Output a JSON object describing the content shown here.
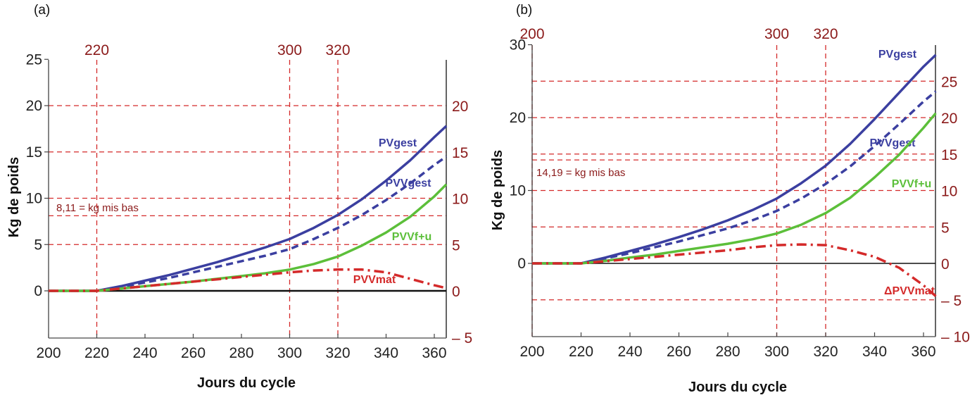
{
  "chart_data": [
    {
      "panel": "(a)",
      "type": "line",
      "xlabel": "Jours du cycle",
      "ylabel": "Kg de poids",
      "xlim": [
        200,
        365
      ],
      "ylim": [
        -5,
        25
      ],
      "x_ticks": [
        200,
        220,
        240,
        260,
        280,
        300,
        320,
        340,
        360
      ],
      "y_ticks_left": [
        0,
        5,
        10,
        15,
        20,
        25
      ],
      "y_ticks_right": [
        -5,
        0,
        5,
        10,
        15,
        20
      ],
      "top_markers": [
        220,
        300,
        320
      ],
      "h_reference_lines": [
        5,
        8.11,
        10,
        15,
        20
      ],
      "annotation": "8,11 = kg mis bas",
      "series": [
        {
          "name": "PVgest",
          "color": "#3b3fa0",
          "style": "solid",
          "x": [
            200,
            220,
            230,
            240,
            250,
            260,
            270,
            280,
            290,
            300,
            310,
            320,
            330,
            340,
            350,
            360,
            365
          ],
          "y": [
            0,
            0,
            0.5,
            1.1,
            1.7,
            2.4,
            3.1,
            3.9,
            4.7,
            5.6,
            6.8,
            8.2,
            9.9,
            11.9,
            14.1,
            16.6,
            17.8
          ]
        },
        {
          "name": "PVVgest",
          "color": "#3b3fa0",
          "style": "dashed",
          "x": [
            200,
            220,
            230,
            240,
            250,
            260,
            270,
            280,
            290,
            300,
            310,
            320,
            330,
            340,
            350,
            360,
            365
          ],
          "y": [
            0,
            0,
            0.4,
            0.9,
            1.4,
            2.0,
            2.6,
            3.2,
            3.8,
            4.5,
            5.6,
            6.8,
            8.2,
            9.8,
            11.6,
            13.6,
            14.5
          ]
        },
        {
          "name": "PVVf+u",
          "color": "#5cbf3a",
          "style": "solid",
          "x": [
            200,
            220,
            230,
            240,
            250,
            260,
            270,
            280,
            290,
            300,
            310,
            320,
            330,
            340,
            350,
            360,
            365
          ],
          "y": [
            0,
            0,
            0.25,
            0.5,
            0.75,
            1.0,
            1.3,
            1.6,
            1.9,
            2.3,
            2.9,
            3.7,
            4.9,
            6.3,
            8.0,
            10.2,
            11.5
          ]
        },
        {
          "name": "PVVmat",
          "color": "#d42a2a",
          "style": "dashdot",
          "x": [
            200,
            220,
            230,
            240,
            250,
            260,
            270,
            280,
            290,
            300,
            310,
            320,
            330,
            340,
            350,
            360,
            365
          ],
          "y": [
            0,
            0,
            0.25,
            0.5,
            0.75,
            1.0,
            1.25,
            1.5,
            1.75,
            2.0,
            2.2,
            2.3,
            2.3,
            2.0,
            1.3,
            0.6,
            0.3
          ]
        }
      ],
      "series_labels": [
        "PVgest",
        "PVVgest",
        "PVVf+u",
        "PVVmat"
      ]
    },
    {
      "panel": "(b)",
      "type": "line",
      "xlabel": "Jours du cycle",
      "ylabel": "Kg de poids",
      "xlim": [
        200,
        365
      ],
      "ylim": [
        -10,
        30
      ],
      "x_ticks": [
        200,
        220,
        240,
        260,
        280,
        300,
        320,
        340,
        360
      ],
      "y_ticks_left": [
        0,
        10,
        20,
        30
      ],
      "y_ticks_right": [
        -10,
        -5,
        0,
        5,
        10,
        15,
        20,
        25
      ],
      "top_markers": [
        200,
        300,
        320
      ],
      "h_reference_lines": [
        -5,
        5,
        10,
        14.19,
        15,
        20,
        25
      ],
      "annotation": "14,19 = kg mis bas",
      "series": [
        {
          "name": "PVgest",
          "color": "#3b3fa0",
          "style": "solid",
          "x": [
            200,
            220,
            230,
            240,
            250,
            260,
            270,
            280,
            290,
            300,
            310,
            320,
            330,
            340,
            350,
            360,
            365
          ],
          "y": [
            0,
            0,
            0.8,
            1.7,
            2.6,
            3.6,
            4.7,
            5.9,
            7.3,
            8.9,
            11.0,
            13.4,
            16.4,
            19.8,
            23.4,
            27.0,
            28.6
          ]
        },
        {
          "name": "PVVgest",
          "color": "#3b3fa0",
          "style": "dashed",
          "x": [
            200,
            220,
            230,
            240,
            250,
            260,
            270,
            280,
            290,
            300,
            310,
            320,
            330,
            340,
            350,
            360,
            365
          ],
          "y": [
            0,
            0,
            0.7,
            1.4,
            2.2,
            3.0,
            3.9,
            4.8,
            5.9,
            7.2,
            8.9,
            10.9,
            13.3,
            16.1,
            19.1,
            22.2,
            23.6
          ]
        },
        {
          "name": "PVVf+u",
          "color": "#5cbf3a",
          "style": "solid",
          "x": [
            200,
            220,
            230,
            240,
            250,
            260,
            270,
            280,
            290,
            300,
            310,
            320,
            330,
            340,
            350,
            360,
            365
          ],
          "y": [
            0,
            0,
            0.35,
            0.8,
            1.2,
            1.7,
            2.2,
            2.7,
            3.3,
            4.1,
            5.3,
            6.9,
            9.0,
            11.8,
            14.9,
            18.6,
            20.6
          ]
        },
        {
          "name": "ΔPVVmat",
          "color": "#d42a2a",
          "style": "dashdot",
          "x": [
            200,
            220,
            230,
            240,
            250,
            260,
            270,
            280,
            290,
            300,
            310,
            320,
            330,
            340,
            350,
            360,
            365
          ],
          "y": [
            0,
            0,
            0.3,
            0.6,
            0.9,
            1.2,
            1.5,
            1.8,
            2.2,
            2.5,
            2.6,
            2.5,
            1.8,
            0.9,
            -0.6,
            -3.0,
            -4.5
          ]
        }
      ],
      "series_labels": [
        "PVgest",
        "PVVgest",
        "PVVf+u",
        "ΔPVVmat"
      ]
    }
  ]
}
